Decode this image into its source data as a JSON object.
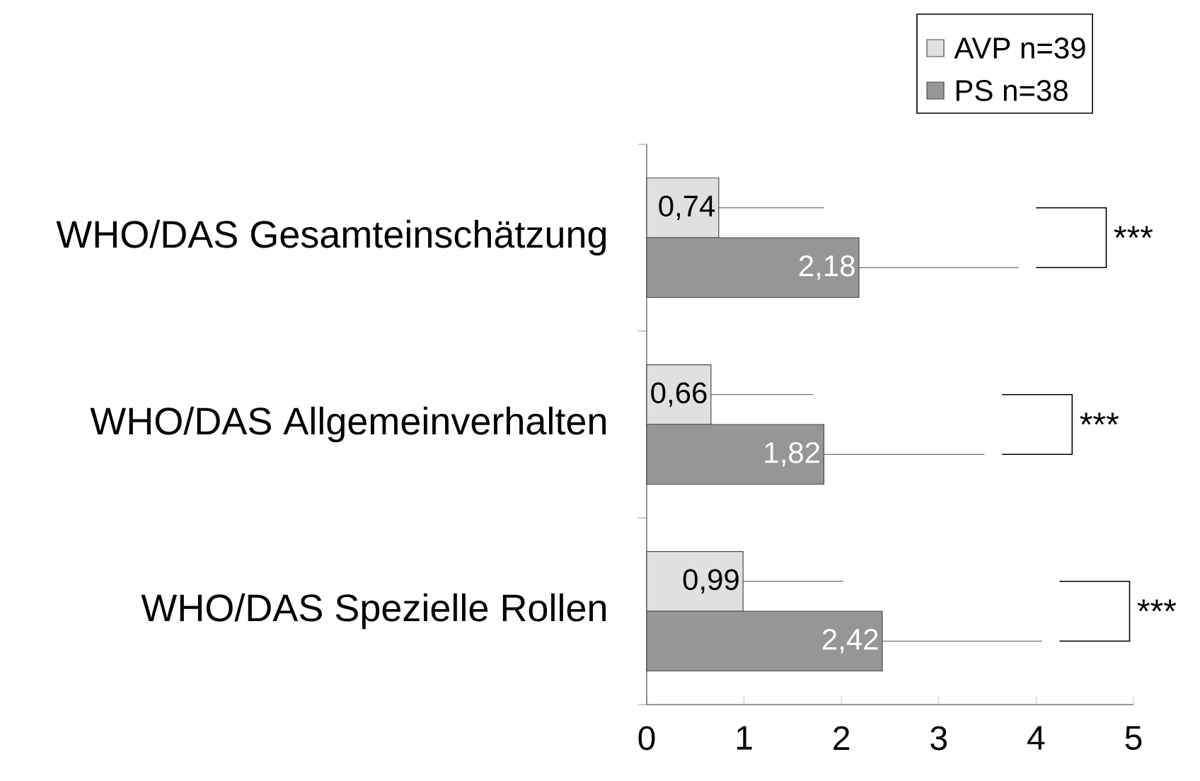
{
  "chart_data": {
    "type": "bar",
    "orientation": "horizontal",
    "categories": [
      "WHO/DAS Gesamteinschätzung",
      "WHO/DAS Allgemeinverhalten",
      "WHO/DAS Spezielle Rollen"
    ],
    "series": [
      {
        "name": "AVP n=39",
        "color": "#e0e0e0",
        "values": [
          0.74,
          0.66,
          0.99
        ],
        "value_labels": [
          "0,74",
          "0,66",
          "0,99"
        ],
        "errors": [
          [
            0.74,
            1.82
          ],
          [
            0.66,
            1.71
          ],
          [
            0.99,
            2.02
          ]
        ]
      },
      {
        "name": "PS n=38",
        "color": "#969696",
        "values": [
          2.18,
          1.82,
          2.42
        ],
        "value_labels": [
          "2,18",
          "1,82",
          "2,42"
        ],
        "errors": [
          [
            2.18,
            3.82
          ],
          [
            1.82,
            3.47
          ],
          [
            2.42,
            4.06
          ]
        ]
      }
    ],
    "xlim": [
      0,
      5
    ],
    "xticks": [
      0,
      1,
      2,
      3,
      4,
      5
    ],
    "annotations": [
      "***",
      "***",
      "***"
    ],
    "legend": "top right",
    "grid": false
  }
}
